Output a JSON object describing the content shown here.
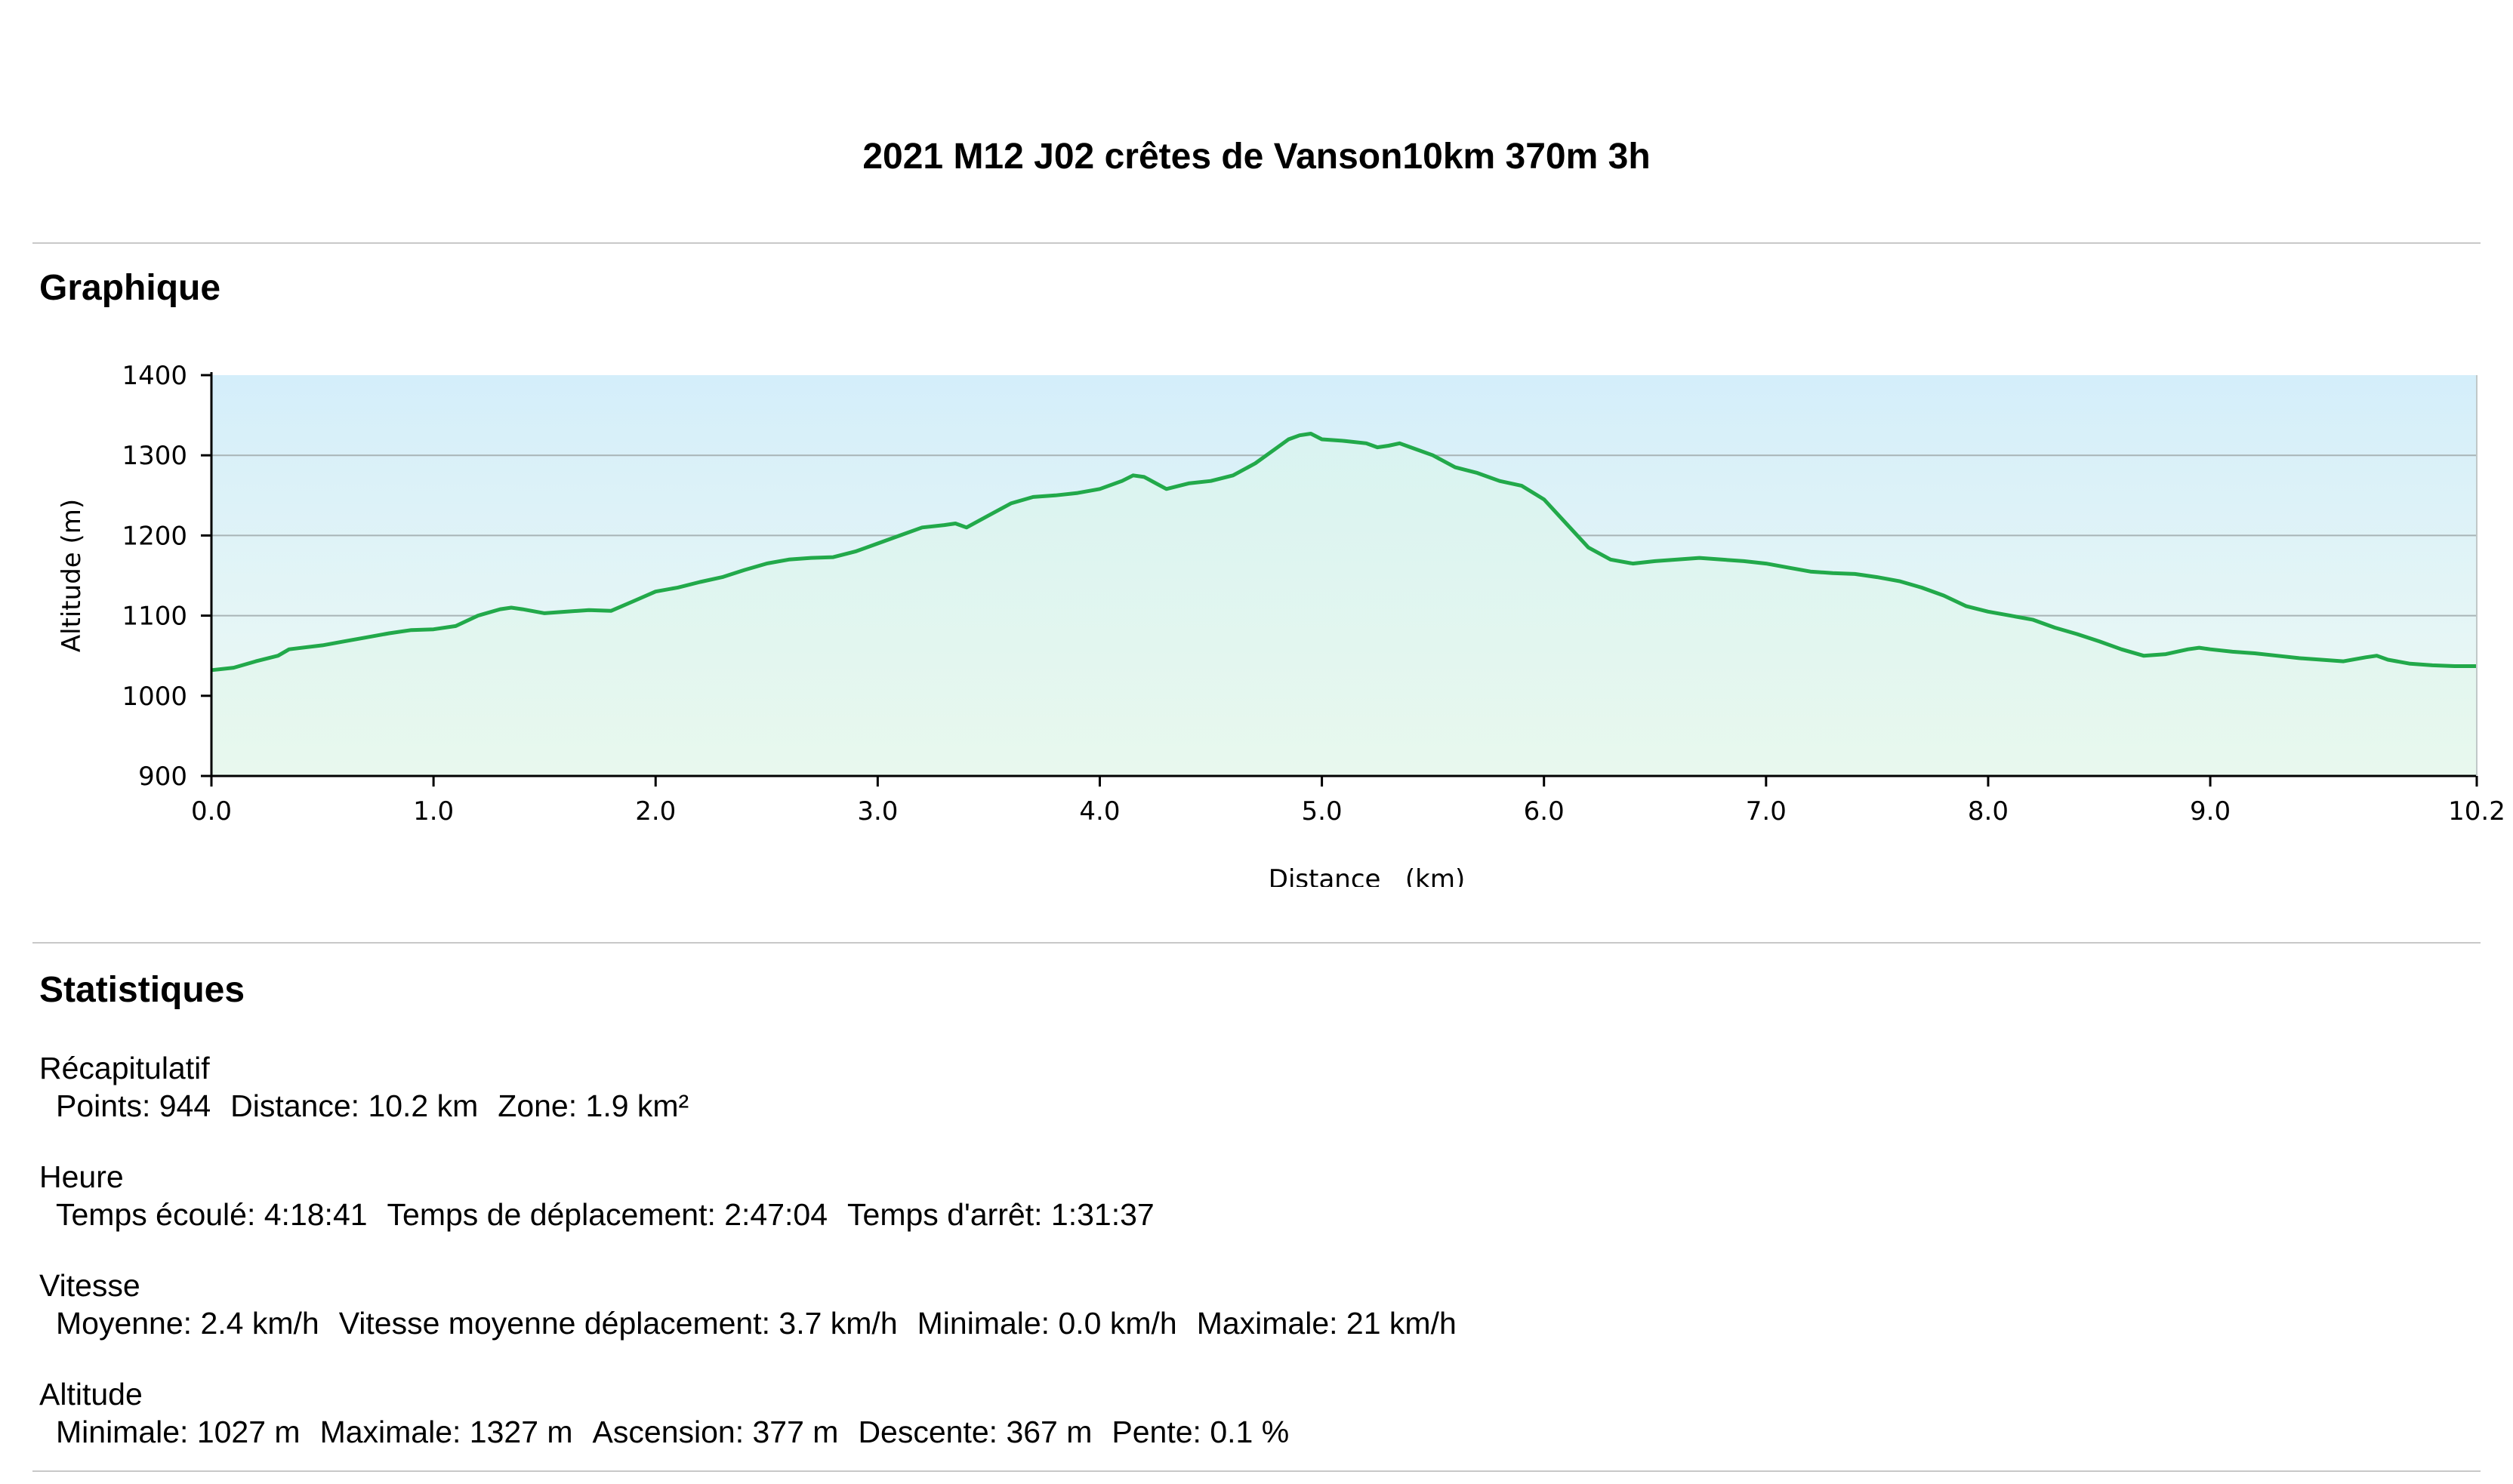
{
  "page": {
    "title": "2021 M12 J02 crêtes de Vanson10km 370m 3h"
  },
  "sections": {
    "graph_heading": "Graphique",
    "stats_heading": "Statistiques"
  },
  "chart_data": {
    "type": "area",
    "title": "",
    "xlabel": "Distance   (km)",
    "ylabel": "Altitude (m)",
    "xlim": [
      0,
      10.2
    ],
    "ylim": [
      900,
      1400
    ],
    "x_ticks": [
      "0.0",
      "1.0",
      "2.0",
      "3.0",
      "4.0",
      "5.0",
      "6.0",
      "7.0",
      "8.0",
      "9.0",
      "10.2"
    ],
    "x_tick_values": [
      0,
      1,
      2,
      3,
      4,
      5,
      6,
      7,
      8,
      9,
      10.2
    ],
    "y_ticks": [
      "900",
      "1000",
      "1100",
      "1200",
      "1300",
      "1400"
    ],
    "y_tick_values": [
      900,
      1000,
      1100,
      1200,
      1300,
      1400
    ],
    "grid": true,
    "legend": "none",
    "colors": {
      "line": "#22a94a",
      "fill_top": "#d9f3f1",
      "fill_bottom": "#e8f8ee",
      "plot_top": "#d4eefa",
      "plot_bottom": "#effaf3",
      "grid": "#a8b4b6"
    },
    "series": [
      {
        "x": [
          0,
          0.1,
          0.2,
          0.3,
          0.35,
          0.5,
          0.6,
          0.7,
          0.8,
          0.9,
          1.0,
          1.1,
          1.2,
          1.3,
          1.35,
          1.4,
          1.5,
          1.6,
          1.7,
          1.8,
          1.9,
          2.0,
          2.1,
          2.2,
          2.3,
          2.4,
          2.5,
          2.6,
          2.7,
          2.8,
          2.9,
          3.0,
          3.1,
          3.2,
          3.3,
          3.35,
          3.4,
          3.5,
          3.6,
          3.7,
          3.8,
          3.9,
          4.0,
          4.1,
          4.15,
          4.2,
          4.3,
          4.4,
          4.5,
          4.6,
          4.7,
          4.8,
          4.85,
          4.9,
          4.95,
          5.0,
          5.1,
          5.2,
          5.25,
          5.3,
          5.35,
          5.4,
          5.5,
          5.6,
          5.7,
          5.8,
          5.9,
          6.0,
          6.1,
          6.2,
          6.3,
          6.4,
          6.5,
          6.6,
          6.7,
          6.8,
          6.9,
          7.0,
          7.1,
          7.2,
          7.3,
          7.4,
          7.5,
          7.6,
          7.7,
          7.8,
          7.9,
          8.0,
          8.1,
          8.2,
          8.3,
          8.4,
          8.5,
          8.6,
          8.7,
          8.8,
          8.9,
          8.95,
          9.0,
          9.1,
          9.2,
          9.3,
          9.4,
          9.5,
          9.6,
          9.7,
          9.75,
          9.8,
          9.9,
          10.0,
          10.1,
          10.2
        ],
        "y": [
          1032,
          1035,
          1043,
          1050,
          1058,
          1063,
          1068,
          1073,
          1078,
          1082,
          1083,
          1087,
          1100,
          1108,
          1110,
          1108,
          1103,
          1105,
          1107,
          1106,
          1118,
          1130,
          1135,
          1142,
          1148,
          1157,
          1165,
          1170,
          1172,
          1173,
          1180,
          1190,
          1200,
          1210,
          1213,
          1215,
          1210,
          1225,
          1240,
          1248,
          1250,
          1253,
          1258,
          1268,
          1275,
          1273,
          1258,
          1265,
          1268,
          1275,
          1290,
          1310,
          1320,
          1325,
          1327,
          1320,
          1318,
          1315,
          1310,
          1312,
          1315,
          1310,
          1300,
          1285,
          1278,
          1268,
          1262,
          1245,
          1215,
          1185,
          1170,
          1165,
          1168,
          1170,
          1172,
          1170,
          1168,
          1165,
          1160,
          1155,
          1153,
          1152,
          1148,
          1143,
          1135,
          1125,
          1112,
          1105,
          1100,
          1095,
          1085,
          1077,
          1068,
          1058,
          1050,
          1052,
          1058,
          1060,
          1058,
          1055,
          1053,
          1050,
          1047,
          1045,
          1043,
          1048,
          1050,
          1045,
          1040,
          1038,
          1037,
          1037
        ]
      }
    ]
  },
  "stats": [
    {
      "heading": "Récapitulatif",
      "items": [
        "Points: 944",
        "Distance: 10.2 km",
        "Zone: 1.9 km²"
      ]
    },
    {
      "heading": "Heure",
      "items": [
        "Temps écoulé: 4:18:41",
        "Temps de déplacement: 2:47:04",
        "Temps d'arrêt: 1:31:37"
      ]
    },
    {
      "heading": "Vitesse",
      "items": [
        "Moyenne: 2.4 km/h",
        "Vitesse moyenne déplacement: 3.7 km/h",
        "Minimale: 0.0 km/h",
        "Maximale: 21 km/h"
      ]
    },
    {
      "heading": "Altitude",
      "items": [
        "Minimale: 1027 m",
        "Maximale: 1327 m",
        "Ascension: 377 m",
        "Descente: 367 m",
        "Pente: 0.1 %"
      ]
    }
  ]
}
